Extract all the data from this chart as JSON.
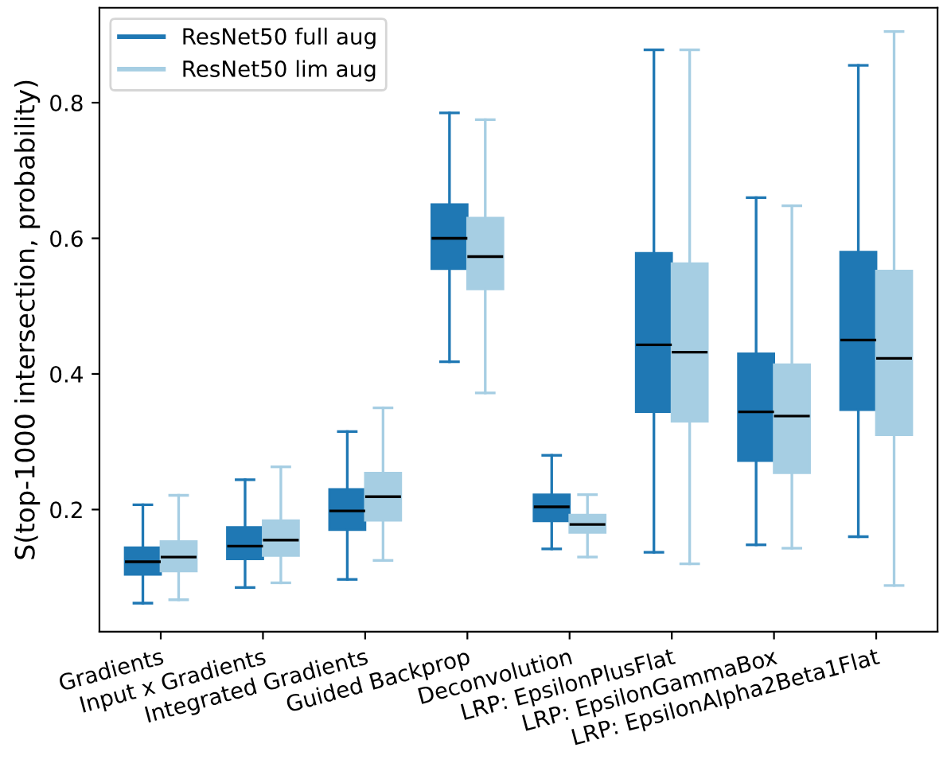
{
  "chart_data": {
    "type": "box",
    "ylabel": "S(top-1000 intersection, probability)",
    "categories": [
      "Gradients",
      "Input x Gradients",
      "Integrated Gradients",
      "Guided Backprop",
      "Deconvolution",
      "LRP: EpsilonPlusFlat",
      "LRP: EpsilonGammaBox",
      "LRP: EpsilonAlpha2Beta1Flat"
    ],
    "ylim": [
      0.02,
      0.94
    ],
    "yticks": [
      0.2,
      0.4,
      0.6,
      0.8
    ],
    "grid": false,
    "legend": "top left",
    "series": [
      {
        "name": "ResNet50 full aug",
        "color": "#1f78b4",
        "boxes": [
          {
            "low": 0.062,
            "q1": 0.104,
            "median": 0.123,
            "q3": 0.144,
            "high": 0.207
          },
          {
            "low": 0.085,
            "q1": 0.127,
            "median": 0.146,
            "q3": 0.174,
            "high": 0.244
          },
          {
            "low": 0.097,
            "q1": 0.17,
            "median": 0.198,
            "q3": 0.23,
            "high": 0.315
          },
          {
            "low": 0.418,
            "q1": 0.555,
            "median": 0.6,
            "q3": 0.65,
            "high": 0.785
          },
          {
            "low": 0.142,
            "q1": 0.183,
            "median": 0.204,
            "q3": 0.222,
            "high": 0.28
          },
          {
            "low": 0.137,
            "q1": 0.344,
            "median": 0.443,
            "q3": 0.578,
            "high": 0.878
          },
          {
            "low": 0.148,
            "q1": 0.272,
            "median": 0.344,
            "q3": 0.43,
            "high": 0.66
          },
          {
            "low": 0.16,
            "q1": 0.347,
            "median": 0.45,
            "q3": 0.58,
            "high": 0.855
          }
        ]
      },
      {
        "name": "ResNet50 lim aug",
        "color": "#a6cee3",
        "boxes": [
          {
            "low": 0.067,
            "q1": 0.109,
            "median": 0.13,
            "q3": 0.153,
            "high": 0.221
          },
          {
            "low": 0.092,
            "q1": 0.132,
            "median": 0.155,
            "q3": 0.184,
            "high": 0.263
          },
          {
            "low": 0.125,
            "q1": 0.184,
            "median": 0.219,
            "q3": 0.254,
            "high": 0.35
          },
          {
            "low": 0.372,
            "q1": 0.525,
            "median": 0.573,
            "q3": 0.63,
            "high": 0.775
          },
          {
            "low": 0.13,
            "q1": 0.166,
            "median": 0.178,
            "q3": 0.192,
            "high": 0.222
          },
          {
            "low": 0.12,
            "q1": 0.33,
            "median": 0.432,
            "q3": 0.563,
            "high": 0.878
          },
          {
            "low": 0.143,
            "q1": 0.254,
            "median": 0.338,
            "q3": 0.414,
            "high": 0.648
          },
          {
            "low": 0.088,
            "q1": 0.31,
            "median": 0.423,
            "q3": 0.552,
            "high": 0.905
          }
        ]
      }
    ]
  }
}
